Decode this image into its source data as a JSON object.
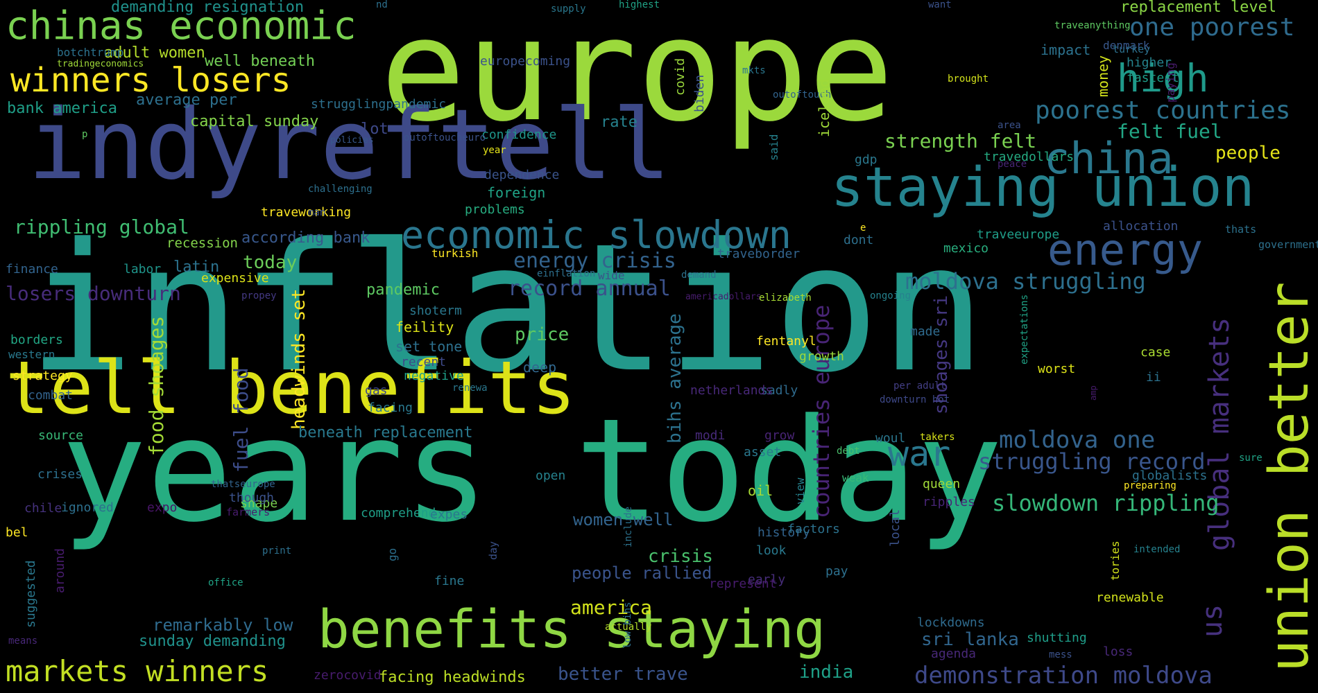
{
  "cloud": {
    "words": [
      {
        "text": "inflation",
        "color": "#23998b"
      },
      {
        "text": "europe",
        "color": "#9bd93c"
      },
      {
        "text": "years today",
        "color": "#26ad81"
      },
      {
        "text": "indyreftell",
        "color": "#3e4a89"
      },
      {
        "text": "tell benefits",
        "color": "#dde318"
      },
      {
        "text": "benefits staying",
        "color": "#8fd744"
      },
      {
        "text": "staying union",
        "color": "#25838e"
      },
      {
        "text": "union better",
        "color": "#bade28"
      },
      {
        "text": "economic slowdown",
        "color": "#2a768e"
      },
      {
        "text": "chinas economic",
        "color": "#7ad151"
      },
      {
        "text": "winners losers",
        "color": "#fde725"
      },
      {
        "text": "markets winners",
        "color": "#c2df23"
      },
      {
        "text": "china",
        "color": "#2a788e"
      },
      {
        "text": "energy",
        "color": "#375a8c"
      },
      {
        "text": "high",
        "color": "#1f9a8a"
      },
      {
        "text": "war",
        "color": "#2a778e"
      },
      {
        "text": "global markets",
        "color": "#472f7d"
      },
      {
        "text": "us",
        "color": "#46317e"
      },
      {
        "text": "poorest countries",
        "color": "#2c728e"
      },
      {
        "text": "one poorest",
        "color": "#2f6b8e"
      },
      {
        "text": "moldova one",
        "color": "#33638d"
      },
      {
        "text": "moldova struggling",
        "color": "#2d708e"
      },
      {
        "text": "struggling record",
        "color": "#39568c"
      },
      {
        "text": "demonstration moldova",
        "color": "#3e4989"
      },
      {
        "text": "slowdown rippling",
        "color": "#35b779"
      },
      {
        "text": "countries europe",
        "color": "#482475"
      },
      {
        "text": "energy crisis",
        "color": "#33638d"
      },
      {
        "text": "record annual",
        "color": "#3b518b"
      },
      {
        "text": "rippling global",
        "color": "#40bd72"
      },
      {
        "text": "losers downturn",
        "color": "#472c7a"
      },
      {
        "text": "strength felt",
        "color": "#7ad151"
      },
      {
        "text": "felt fuel",
        "color": "#22a785"
      },
      {
        "text": "people",
        "color": "#e5e419"
      },
      {
        "text": "food shoages",
        "color": "#a5db36"
      },
      {
        "text": "fuel food",
        "color": "#3d4d8a"
      },
      {
        "text": "headwinds set",
        "color": "#fde725"
      },
      {
        "text": "bihs average",
        "color": "#2c728e"
      },
      {
        "text": "shoages sri",
        "color": "#453882"
      },
      {
        "text": "sri lanka",
        "color": "#31668e"
      },
      {
        "text": "better trave",
        "color": "#3a548c"
      },
      {
        "text": "facing headwinds",
        "color": "#bddf26"
      },
      {
        "text": "india",
        "color": "#1fa188"
      },
      {
        "text": "america",
        "color": "#d2e21b"
      },
      {
        "text": "crisis",
        "color": "#4ac16d"
      },
      {
        "text": "people rallied",
        "color": "#3a548c"
      },
      {
        "text": "women well",
        "color": "#32648e"
      },
      {
        "text": "remarkably low",
        "color": "#2f6b8e"
      },
      {
        "text": "sunday demanding",
        "color": "#20928c"
      },
      {
        "text": "today",
        "color": "#6ccd5a"
      },
      {
        "text": "pandemic",
        "color": "#5ec962"
      },
      {
        "text": "price",
        "color": "#5ec962"
      },
      {
        "text": "beneath replacement",
        "color": "#29798e"
      },
      {
        "text": "capital sunday",
        "color": "#84d44b"
      },
      {
        "text": "average per",
        "color": "#2d708e"
      },
      {
        "text": "bank america",
        "color": "#1f9f88"
      },
      {
        "text": "adult women",
        "color": "#b5de2b"
      },
      {
        "text": "well beneath",
        "color": "#73d056"
      },
      {
        "text": "demanding resignation",
        "color": "#20928c"
      },
      {
        "text": "replacement level",
        "color": "#8bd646"
      },
      {
        "text": "according bank",
        "color": "#38588c"
      },
      {
        "text": "lot",
        "color": "#3e4989"
      },
      {
        "text": "rate",
        "color": "#26828e"
      },
      {
        "text": "confidence",
        "color": "#1f968b"
      },
      {
        "text": "dependence",
        "color": "#3a548c"
      },
      {
        "text": "foreign",
        "color": "#20a386"
      },
      {
        "text": "problems",
        "color": "#27ad81"
      },
      {
        "text": "recession",
        "color": "#84d44b"
      },
      {
        "text": "latin",
        "color": "#2c728e"
      },
      {
        "text": "expensive",
        "color": "#dde318"
      },
      {
        "text": "finance",
        "color": "#32648e"
      },
      {
        "text": "labor",
        "color": "#1f958b"
      },
      {
        "text": "shoterm",
        "color": "#2a788e"
      },
      {
        "text": "feility",
        "color": "#dde318"
      },
      {
        "text": "set tone",
        "color": "#2d708e"
      },
      {
        "text": "recent",
        "color": "#3e4a89"
      },
      {
        "text": "negative",
        "color": "#1f9f88"
      },
      {
        "text": "deep",
        "color": "#31688e"
      },
      {
        "text": "gas",
        "color": "#3e4989"
      },
      {
        "text": "facing",
        "color": "#2a788e"
      },
      {
        "text": "borders",
        "color": "#22a785"
      },
      {
        "text": "western",
        "color": "#29798e"
      },
      {
        "text": "strategy",
        "color": "#fde725"
      },
      {
        "text": "combat",
        "color": "#33638d"
      },
      {
        "text": "source",
        "color": "#38b977"
      },
      {
        "text": "crises",
        "color": "#2d708e"
      },
      {
        "text": "chile",
        "color": "#46327e"
      },
      {
        "text": "shape",
        "color": "#7ad151"
      },
      {
        "text": "though",
        "color": "#3b528b"
      },
      {
        "text": "ignored",
        "color": "#2d708e"
      },
      {
        "text": "expo",
        "color": "#481668"
      },
      {
        "text": "bel",
        "color": "#fde725"
      },
      {
        "text": "thatseurope",
        "color": "#32648e"
      },
      {
        "text": "farmers",
        "color": "#481c6e"
      },
      {
        "text": "comprehend",
        "color": "#1f9f88"
      },
      {
        "text": "expes",
        "color": "#2a778e"
      },
      {
        "text": "open",
        "color": "#26828e"
      },
      {
        "text": "oil",
        "color": "#a8db34"
      },
      {
        "text": "impact",
        "color": "#2c728e"
      },
      {
        "text": "denmark",
        "color": "#38588c"
      },
      {
        "text": "higher",
        "color": "#25848e"
      },
      {
        "text": "fastest",
        "color": "#1f9e89"
      },
      {
        "text": "allocation",
        "color": "#3b528b"
      },
      {
        "text": "thats",
        "color": "#2c728e"
      },
      {
        "text": "government",
        "color": "#2d718e"
      },
      {
        "text": "mexico",
        "color": "#29af7f"
      },
      {
        "text": "traveeurope",
        "color": "#1f9e89"
      },
      {
        "text": "dont",
        "color": "#2d708e"
      },
      {
        "text": "travedollars",
        "color": "#25ab82"
      },
      {
        "text": "gdp",
        "color": "#2a788e"
      },
      {
        "text": "made",
        "color": "#2f6b8e"
      },
      {
        "text": "case",
        "color": "#aadc32"
      },
      {
        "text": "ii",
        "color": "#2c728e"
      },
      {
        "text": "worst",
        "color": "#dde318"
      },
      {
        "text": "woul",
        "color": "#2a778e"
      },
      {
        "text": "takers",
        "color": "#d8e219"
      },
      {
        "text": "queen",
        "color": "#a0da39"
      },
      {
        "text": "ripples",
        "color": "#482576"
      },
      {
        "text": "weak",
        "color": "#38b977"
      },
      {
        "text": "globalists",
        "color": "#2c728e"
      },
      {
        "text": "preparing",
        "color": "#fde725"
      },
      {
        "text": "sure",
        "color": "#20a386"
      },
      {
        "text": "fentanyl",
        "color": "#fde725"
      },
      {
        "text": "growth",
        "color": "#9bd93c"
      },
      {
        "text": "sadly",
        "color": "#2f6b8e"
      },
      {
        "text": "netherlands",
        "color": "#482878"
      },
      {
        "text": "modi",
        "color": "#472a7a"
      },
      {
        "text": "grow",
        "color": "#482475"
      },
      {
        "text": "asset",
        "color": "#2a788e"
      },
      {
        "text": "debt",
        "color": "#4ac16d"
      },
      {
        "text": "pay",
        "color": "#2d708e"
      },
      {
        "text": "early",
        "color": "#472d7b"
      },
      {
        "text": "look",
        "color": "#29798e"
      },
      {
        "text": "history",
        "color": "#32648e"
      },
      {
        "text": "factors",
        "color": "#2c728e"
      },
      {
        "text": "represent",
        "color": "#481c6e"
      },
      {
        "text": "fine",
        "color": "#2a778e"
      },
      {
        "text": "lockdowns",
        "color": "#2f6b8e"
      },
      {
        "text": "shutting",
        "color": "#1f9e89"
      },
      {
        "text": "loss",
        "color": "#482878"
      },
      {
        "text": "agenda",
        "color": "#482878"
      },
      {
        "text": "mess",
        "color": "#3b528b"
      },
      {
        "text": "renewable",
        "color": "#d2e21b"
      },
      {
        "text": "intended",
        "color": "#26828e"
      },
      {
        "text": "actually",
        "color": "#b5de2b"
      },
      {
        "text": "print",
        "color": "#2d708e"
      },
      {
        "text": "office",
        "color": "#20a386"
      },
      {
        "text": "means",
        "color": "#482878"
      },
      {
        "text": "zerocovid",
        "color": "#481c6e"
      },
      {
        "text": "renewa",
        "color": "#2a788e"
      },
      {
        "text": "einflation",
        "color": "#2d708e"
      },
      {
        "text": "wide",
        "color": "#3b528b"
      },
      {
        "text": "demand",
        "color": "#2c728e"
      },
      {
        "text": "propey",
        "color": "#443983"
      },
      {
        "text": "americadollars",
        "color": "#481c6e"
      },
      {
        "text": "turkish",
        "color": "#fde725"
      },
      {
        "text": "traveborder",
        "color": "#32648e"
      },
      {
        "text": "traveworking",
        "color": "#fde725"
      },
      {
        "text": "man",
        "color": "#3b528b"
      },
      {
        "text": "challenging",
        "color": "#2d708e"
      },
      {
        "text": "policies",
        "color": "#38588c"
      },
      {
        "text": "year",
        "color": "#e5e419"
      },
      {
        "text": "outoftoucheuro",
        "color": "#3b528b"
      },
      {
        "text": "p",
        "color": "#5ec962"
      },
      {
        "text": "strugglingpandemic",
        "color": "#2d708e"
      },
      {
        "text": "botchtrump",
        "color": "#2c728e"
      },
      {
        "text": "tradingeconomics",
        "color": "#a0da39"
      },
      {
        "text": "europecoming",
        "color": "#3b528b"
      },
      {
        "text": "nd",
        "color": "#2d708e"
      },
      {
        "text": "supply",
        "color": "#2a788e"
      },
      {
        "text": "highest",
        "color": "#20a386"
      },
      {
        "text": "want",
        "color": "#3b528b"
      },
      {
        "text": "traveanything",
        "color": "#5ec962"
      },
      {
        "text": "turkey",
        "color": "#2d708e"
      },
      {
        "text": "mkts",
        "color": "#2a778e"
      },
      {
        "text": "outoftouch",
        "color": "#32648e"
      },
      {
        "text": "brought",
        "color": "#d2e21b"
      },
      {
        "text": "area",
        "color": "#3b528b"
      },
      {
        "text": "peace",
        "color": "#482576"
      },
      {
        "text": "e",
        "color": "#fde725"
      },
      {
        "text": "elizabeth",
        "color": "#a8db34"
      },
      {
        "text": "ongoing",
        "color": "#26828e"
      },
      {
        "text": "downturn hot",
        "color": "#3e4989"
      },
      {
        "text": "per adult",
        "color": "#433e85"
      },
      {
        "text": "covid",
        "color": "#9bd93c"
      },
      {
        "text": "biden",
        "color": "#3b528b"
      },
      {
        "text": "iceland",
        "color": "#a0da39"
      },
      {
        "text": "money",
        "color": "#d2e21b"
      },
      {
        "text": "paying",
        "color": "#481c6e"
      },
      {
        "text": "said",
        "color": "#26828e"
      },
      {
        "text": "view",
        "color": "#26828e"
      },
      {
        "text": "local",
        "color": "#3b528b"
      },
      {
        "text": "go",
        "color": "#2d708e"
      },
      {
        "text": "day",
        "color": "#3b528b"
      },
      {
        "text": "low bihs",
        "color": "#2d708e"
      },
      {
        "text": "include",
        "color": "#2c728e"
      },
      {
        "text": "expectations",
        "color": "#20a386"
      },
      {
        "text": "around",
        "color": "#481c6e"
      },
      {
        "text": "suggested",
        "color": "#2a788e"
      },
      {
        "text": "amp",
        "color": "#481c6e"
      },
      {
        "text": "tories",
        "color": "#d2e21b"
      }
    ]
  }
}
